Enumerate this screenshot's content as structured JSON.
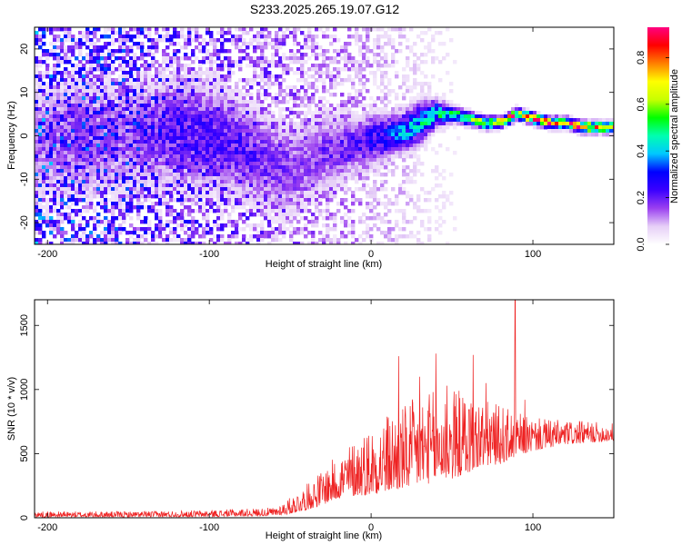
{
  "figure_title": "S233.2025.265.19.07.G12",
  "chart_data": [
    {
      "type": "heatmap",
      "title": "S233.2025.265.19.07.G12",
      "xlabel": "Height of straight line (km)",
      "ylabel": "Frequency (Hz)",
      "xlim": [
        -208,
        150
      ],
      "ylim": [
        -25,
        25
      ],
      "xticks": [
        -200,
        -100,
        0,
        100
      ],
      "xtick_labels": [
        "-200",
        "-100",
        "0",
        "100"
      ],
      "yticks": [
        -20,
        -10,
        0,
        10,
        20
      ],
      "ytick_labels": [
        "-20",
        "-10",
        "0",
        "10",
        "20"
      ],
      "colorbar": {
        "label": "Normalized spectral amplitude",
        "range": [
          0.0,
          0.93
        ],
        "ticks": [
          0.0,
          0.2,
          0.4,
          0.6,
          0.8
        ],
        "tick_labels": [
          "0.0",
          "0.2",
          "0.4",
          "0.6",
          "0.8"
        ],
        "colors": [
          "#ffffff",
          "#e6cff7",
          "#9a3ff0",
          "#3a00ff",
          "#0000ff",
          "#00c8ff",
          "#00ffb0",
          "#00ff00",
          "#c8ff00",
          "#ffff00",
          "#ff8000",
          "#ff0000",
          "#ff0080"
        ]
      },
      "ridge": {
        "x": [
          -200,
          -180,
          -160,
          -140,
          -120,
          -100,
          -80,
          -70,
          -60,
          -50,
          -40,
          -30,
          -20,
          -10,
          0,
          10,
          20,
          30,
          40,
          50,
          60,
          70,
          80,
          90,
          100,
          110,
          120,
          130,
          140,
          150
        ],
        "freq": [
          -1,
          0,
          -1,
          0,
          1,
          0,
          -3,
          -5,
          -7,
          -8,
          -6,
          -4,
          -3,
          -2,
          -1,
          0,
          1,
          3,
          5,
          5,
          4,
          3,
          3,
          5,
          4,
          3,
          3,
          2,
          2,
          2
        ],
        "peak_amplitude": [
          0.15,
          0.2,
          0.15,
          0.2,
          0.25,
          0.25,
          0.25,
          0.22,
          0.2,
          0.18,
          0.18,
          0.2,
          0.22,
          0.25,
          0.3,
          0.35,
          0.4,
          0.45,
          0.5,
          0.55,
          0.65,
          0.75,
          0.8,
          0.85,
          0.85,
          0.88,
          0.9,
          0.9,
          0.9,
          0.9
        ],
        "spread_hz": [
          9,
          9,
          9,
          8,
          8,
          8,
          7,
          7,
          7,
          7,
          6,
          6,
          5,
          4,
          4,
          3,
          3,
          3,
          2,
          1.2,
          1.0,
          0.9,
          0.8,
          0.8,
          0.8,
          0.8,
          0.8,
          0.8,
          0.8,
          0.8
        ]
      },
      "noise_level_by_x": {
        "x": [
          -208,
          -150,
          -100,
          -60,
          -20,
          20,
          60,
          150
        ],
        "level": [
          0.18,
          0.16,
          0.12,
          0.1,
          0.08,
          0.05,
          0.01,
          0.0
        ]
      }
    },
    {
      "type": "line",
      "xlabel": "Height of straight line (km)",
      "ylabel": "SNR (10 * v/v)",
      "xlim": [
        -208,
        150
      ],
      "ylim": [
        0,
        1700
      ],
      "xticks": [
        -200,
        -100,
        0,
        100
      ],
      "xtick_labels": [
        "-200",
        "-100",
        "0",
        "100"
      ],
      "yticks": [
        0,
        500,
        1000,
        1500
      ],
      "ytick_labels": [
        "0",
        "500",
        "1000",
        "1500"
      ],
      "series": [
        {
          "name": "SNR",
          "color": "#ee2222",
          "envelope_x": [
            -208,
            -150,
            -100,
            -60,
            -50,
            -40,
            -30,
            -20,
            -10,
            0,
            10,
            20,
            30,
            40,
            50,
            60,
            70,
            80,
            90,
            100,
            120,
            150
          ],
          "envelope_min": [
            5,
            5,
            8,
            15,
            30,
            60,
            100,
            150,
            170,
            180,
            200,
            220,
            250,
            280,
            300,
            350,
            400,
            420,
            480,
            520,
            570,
            600
          ],
          "envelope_max": [
            50,
            50,
            60,
            80,
            160,
            260,
            380,
            500,
            620,
            730,
            820,
            880,
            960,
            1000,
            1020,
            980,
            920,
            880,
            820,
            780,
            760,
            740
          ],
          "spikes": [
            {
              "x": 17,
              "y": 1260
            },
            {
              "x": 30,
              "y": 1100
            },
            {
              "x": 40,
              "y": 1280
            },
            {
              "x": 47,
              "y": 1030
            },
            {
              "x": 63,
              "y": 1270
            },
            {
              "x": 71,
              "y": 1050
            },
            {
              "x": 89,
              "y": 1700
            },
            {
              "x": 95,
              "y": 920
            }
          ]
        }
      ]
    }
  ]
}
